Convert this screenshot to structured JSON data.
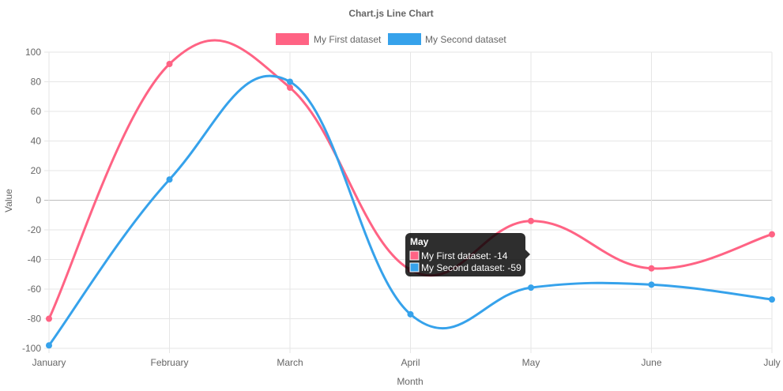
{
  "chart_data": {
    "type": "line",
    "title": "Chart.js Line Chart",
    "xlabel": "Month",
    "ylabel": "Value",
    "categories": [
      "January",
      "February",
      "March",
      "April",
      "May",
      "June",
      "July"
    ],
    "ylim": [
      -100,
      100
    ],
    "yticks": [
      100,
      80,
      60,
      40,
      20,
      0,
      -20,
      -40,
      -60,
      -80,
      -100
    ],
    "grid": true,
    "legend_position": "top",
    "series": [
      {
        "name": "My First dataset",
        "color": "#ff6384",
        "values": [
          -80,
          92,
          76,
          -47,
          -14,
          -46,
          -23
        ]
      },
      {
        "name": "My Second dataset",
        "color": "#36a2eb",
        "values": [
          -98,
          14,
          80,
          -77,
          -59,
          -57,
          -67
        ]
      }
    ],
    "tooltip": {
      "title": "May",
      "lines": [
        "My First dataset: -14",
        "My Second dataset: -59"
      ]
    }
  }
}
